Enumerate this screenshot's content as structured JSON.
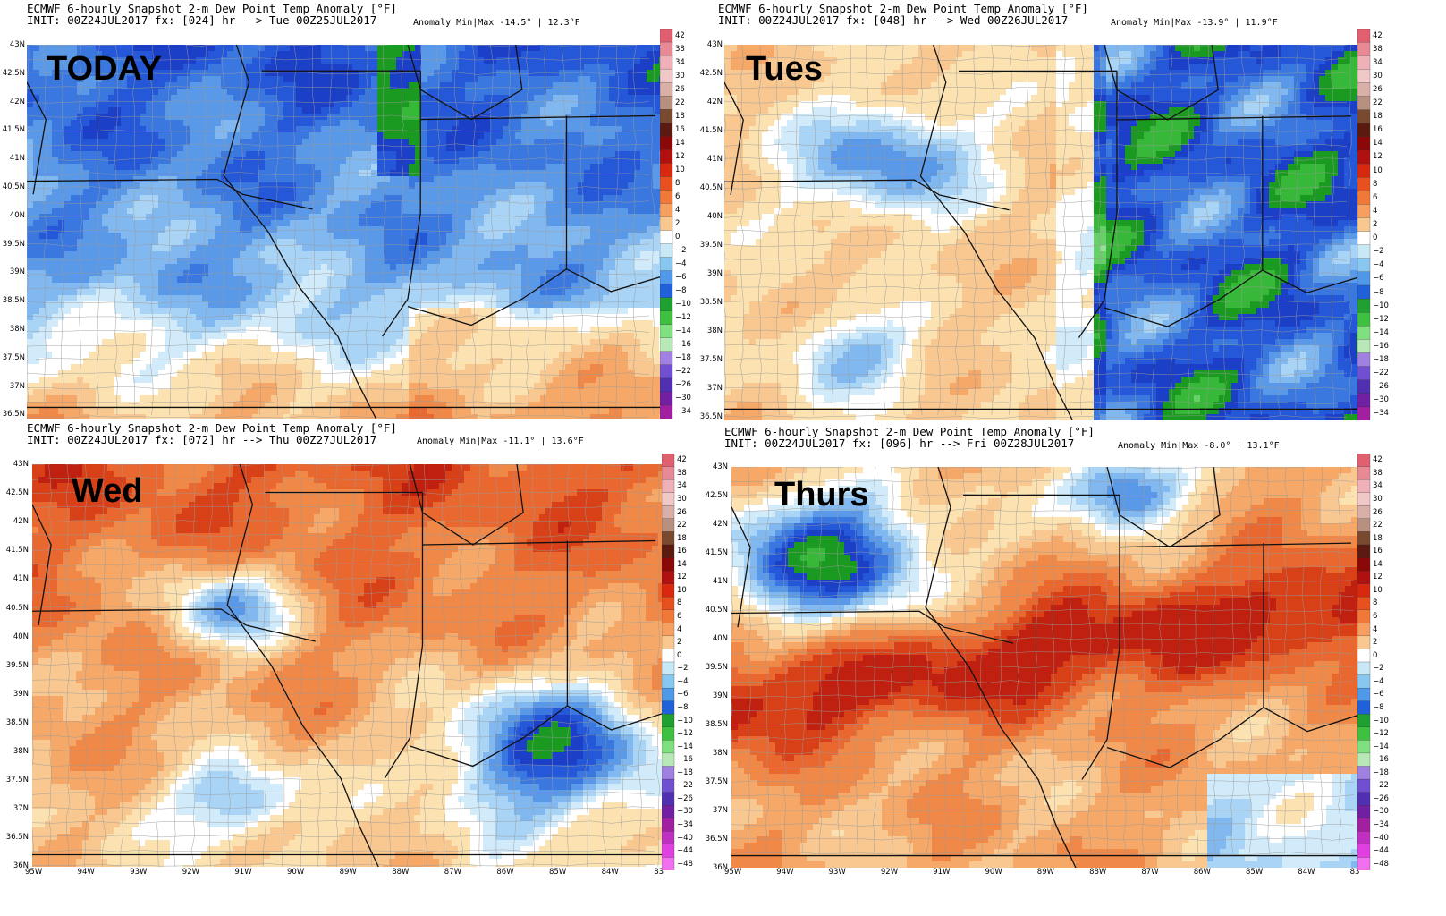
{
  "panels": [
    {
      "id": "p1",
      "title_line1": "ECMWF 6-hourly Snapshot 2-m Dew Point Temp Anomaly [°F]",
      "title_line2": "INIT: 00Z24JUL2017 fx: [024] hr --> Tue 00Z25JUL2017",
      "stats": "Anomaly Min|Max -14.5° | 12.3°F",
      "label": "TODAY",
      "scheme": "cool"
    },
    {
      "id": "p2",
      "title_line1": "ECMWF 6-hourly Snapshot 2-m Dew Point Temp Anomaly [°F]",
      "title_line2": "INIT: 00Z24JUL2017 fx: [048] hr --> Wed 00Z26JUL2017",
      "stats": "Anomaly Min|Max -13.9° | 11.9°F",
      "label": "Tues",
      "scheme": "split"
    },
    {
      "id": "p3",
      "title_line1": "ECMWF 6-hourly Snapshot 2-m Dew Point Temp Anomaly [°F]",
      "title_line2": "INIT: 00Z24JUL2017 fx: [072] hr --> Thu 00Z27JUL2017",
      "stats": "Anomaly Min|Max -11.1° | 13.6°F",
      "label": "Wed",
      "scheme": "warm"
    },
    {
      "id": "p4",
      "title_line1": "ECMWF 6-hourly Snapshot 2-m Dew Point Temp Anomaly [°F]",
      "title_line2": "INIT: 00Z24JUL2017 fx: [096] hr --> Fri 00Z28JUL2017",
      "stats": "Anomaly Min|Max -8.0° | 13.1°F",
      "label": "Thurs",
      "scheme": "hot"
    }
  ],
  "lat_labels": [
    "43N",
    "42.5N",
    "42N",
    "41.5N",
    "41N",
    "40.5N",
    "40N",
    "39.5N",
    "39N",
    "38.5N",
    "38N",
    "37.5N",
    "37N",
    "36.5N"
  ],
  "lat_labels_bottom": [
    "43N",
    "42.5N",
    "42N",
    "41.5N",
    "41N",
    "40.5N",
    "40N",
    "39.5N",
    "39N",
    "38.5N",
    "38N",
    "37.5N",
    "37N",
    "36.5N",
    "36N"
  ],
  "lon_labels": [
    "95W",
    "94W",
    "93W",
    "92W",
    "91W",
    "90W",
    "89W",
    "88W",
    "87W",
    "86W",
    "85W",
    "84W",
    "83"
  ],
  "colorbar_top": [
    "42",
    "38",
    "34",
    "30",
    "26",
    "22",
    "18",
    "16",
    "14",
    "12",
    "10",
    "8",
    "6",
    "4",
    "2",
    "0",
    "−2",
    "−4",
    "−6",
    "−8",
    "−10",
    "−12",
    "−14",
    "−16",
    "−18",
    "−22",
    "−26",
    "−30",
    "−34"
  ],
  "colorbar_bottom": [
    "42",
    "38",
    "34",
    "30",
    "26",
    "22",
    "18",
    "16",
    "14",
    "12",
    "10",
    "8",
    "6",
    "4",
    "2",
    "0",
    "−2",
    "−4",
    "−6",
    "−8",
    "−10",
    "−12",
    "−14",
    "−16",
    "−18",
    "−22",
    "−26",
    "−30",
    "−34",
    "−40",
    "−44",
    "−48"
  ],
  "colorbar_colors": [
    "#e06070",
    "#e88a96",
    "#f0b0b8",
    "#f0c8c8",
    "#d8b0a8",
    "#b89080",
    "#7a4a30",
    "#5a1a10",
    "#8a0808",
    "#b01010",
    "#d82810",
    "#e85020",
    "#f07838",
    "#f5a060",
    "#f8c890",
    "#ffffff",
    "#c8e8f5",
    "#88c8f0",
    "#5098e8",
    "#2060d8",
    "#20a030",
    "#40c040",
    "#80e080",
    "#b8e8b8",
    "#a080e0",
    "#7050d0",
    "#5030b0",
    "#7020a0",
    "#a020a0",
    "#c030c0",
    "#e040e0",
    "#f070f0"
  ]
}
